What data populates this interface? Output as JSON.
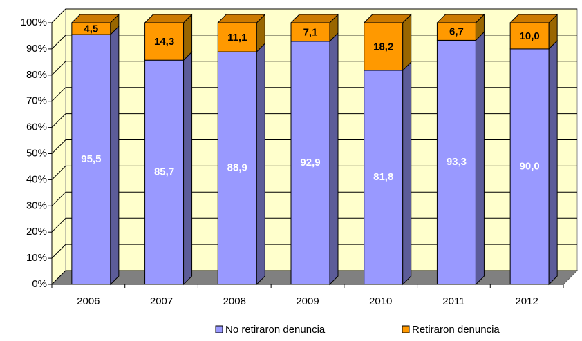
{
  "chart_data": {
    "type": "bar",
    "stacked": true,
    "categories": [
      "2006",
      "2007",
      "2008",
      "2009",
      "2010",
      "2011",
      "2012"
    ],
    "series": [
      {
        "name": "No retiraron denuncia",
        "color": "#9999ff",
        "values": [
          95.5,
          85.7,
          88.9,
          92.9,
          81.8,
          93.3,
          90.0
        ],
        "value_labels": [
          "95,5",
          "85,7",
          "88,9",
          "92,9",
          "81,8",
          "93,3",
          "90,0"
        ]
      },
      {
        "name": "Retiraron denuncia",
        "color": "#ff9900",
        "values": [
          4.5,
          14.3,
          11.1,
          7.1,
          18.2,
          6.7,
          10.0
        ],
        "value_labels": [
          "4,5",
          "14,3",
          "11,1",
          "7,1",
          "18,2",
          "6,7",
          "10,0"
        ]
      }
    ],
    "ylim": [
      0,
      100
    ],
    "yticks": [
      {
        "value": 0,
        "label": "0%"
      },
      {
        "value": 10,
        "label": "10%"
      },
      {
        "value": 20,
        "label": "20%"
      },
      {
        "value": 30,
        "label": "30%"
      },
      {
        "value": 40,
        "label": "40%"
      },
      {
        "value": 50,
        "label": "50%"
      },
      {
        "value": 60,
        "label": "60%"
      },
      {
        "value": 70,
        "label": "70%"
      },
      {
        "value": 80,
        "label": "80%"
      },
      {
        "value": 90,
        "label": "90%"
      },
      {
        "value": 100,
        "label": "100%"
      }
    ],
    "grid": true,
    "legend": "bottom"
  }
}
